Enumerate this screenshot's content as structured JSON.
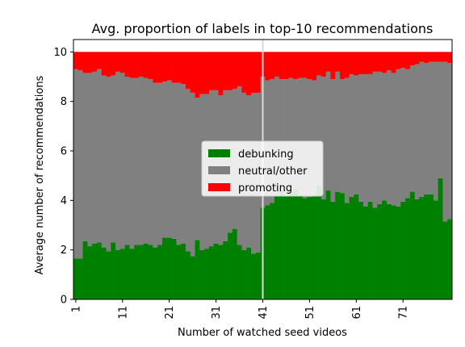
{
  "chart_data": {
    "type": "bar",
    "stacked": true,
    "title": "Avg. proportion of labels in top-10 recommendations",
    "xlabel": "Number of watched seed videos",
    "ylabel": "Average number of recommendations",
    "ylim": [
      0,
      10.5
    ],
    "yticks": [
      0,
      2,
      4,
      6,
      8,
      10
    ],
    "xticks": [
      "1",
      "11",
      "21",
      "31",
      "41",
      "51",
      "61",
      "71"
    ],
    "x_start": 1,
    "vline_x": 41,
    "legend_position": "center",
    "series": [
      {
        "name": "debunking",
        "color": "#008000",
        "values": [
          1.65,
          1.65,
          2.35,
          2.15,
          2.25,
          2.3,
          2.1,
          1.95,
          2.3,
          2.0,
          2.05,
          2.2,
          2.05,
          2.2,
          2.2,
          2.25,
          2.2,
          2.1,
          2.2,
          2.5,
          2.5,
          2.45,
          2.2,
          2.25,
          1.95,
          1.75,
          2.4,
          2.0,
          2.05,
          2.15,
          2.25,
          2.2,
          2.35,
          2.7,
          2.85,
          2.2,
          2.0,
          2.1,
          1.85,
          1.9,
          3.7,
          3.8,
          3.9,
          4.2,
          4.4,
          4.2,
          4.35,
          4.45,
          4.2,
          4.1,
          4.15,
          4.2,
          4.6,
          4.05,
          4.4,
          3.95,
          4.35,
          4.3,
          3.9,
          4.15,
          4.25,
          3.95,
          3.75,
          3.95,
          3.7,
          3.85,
          4.0,
          3.85,
          3.8,
          3.75,
          3.95,
          4.1,
          4.35,
          4.05,
          4.15,
          4.25,
          4.25,
          4.0,
          4.9,
          3.15,
          3.25
        ]
      },
      {
        "name": "neutral/other",
        "color": "#808080",
        "values": [
          7.65,
          7.6,
          6.8,
          7.0,
          6.95,
          7.0,
          6.95,
          7.05,
          6.75,
          7.2,
          7.1,
          6.8,
          6.9,
          6.75,
          6.8,
          6.7,
          6.7,
          6.65,
          6.55,
          6.3,
          6.35,
          6.3,
          6.55,
          6.45,
          6.55,
          6.6,
          5.75,
          6.3,
          6.25,
          6.3,
          6.2,
          6.05,
          6.1,
          5.75,
          5.65,
          6.4,
          6.35,
          6.15,
          6.5,
          6.45,
          5.3,
          5.05,
          5.0,
          4.8,
          4.5,
          4.7,
          4.6,
          4.45,
          4.75,
          4.85,
          4.75,
          4.65,
          4.45,
          4.95,
          4.8,
          4.95,
          4.85,
          4.6,
          5.05,
          4.95,
          4.8,
          5.15,
          5.35,
          5.15,
          5.5,
          5.35,
          5.15,
          5.4,
          5.35,
          5.55,
          5.4,
          5.2,
          5.1,
          5.45,
          5.45,
          5.3,
          5.35,
          5.6,
          4.7,
          6.45,
          6.3
        ]
      },
      {
        "name": "promoting",
        "color": "#ff0000",
        "values": [
          0.7,
          0.75,
          0.85,
          0.85,
          0.8,
          0.7,
          0.95,
          1.0,
          0.95,
          0.8,
          0.85,
          1.0,
          1.05,
          1.05,
          1.0,
          1.05,
          1.1,
          1.25,
          1.25,
          1.2,
          1.15,
          1.25,
          1.25,
          1.3,
          1.5,
          1.65,
          1.85,
          1.7,
          1.7,
          1.55,
          1.55,
          1.75,
          1.55,
          1.55,
          1.5,
          1.4,
          1.65,
          1.75,
          1.65,
          1.65,
          1.0,
          1.15,
          1.1,
          1.0,
          1.1,
          1.1,
          1.05,
          1.1,
          1.05,
          1.05,
          1.1,
          1.15,
          0.95,
          1.0,
          0.8,
          1.1,
          0.8,
          1.1,
          1.05,
          0.9,
          0.95,
          0.9,
          0.9,
          0.9,
          0.8,
          0.8,
          0.85,
          0.75,
          0.85,
          0.7,
          0.65,
          0.7,
          0.55,
          0.5,
          0.4,
          0.45,
          0.4,
          0.4,
          0.4,
          0.4,
          0.45
        ]
      }
    ]
  }
}
